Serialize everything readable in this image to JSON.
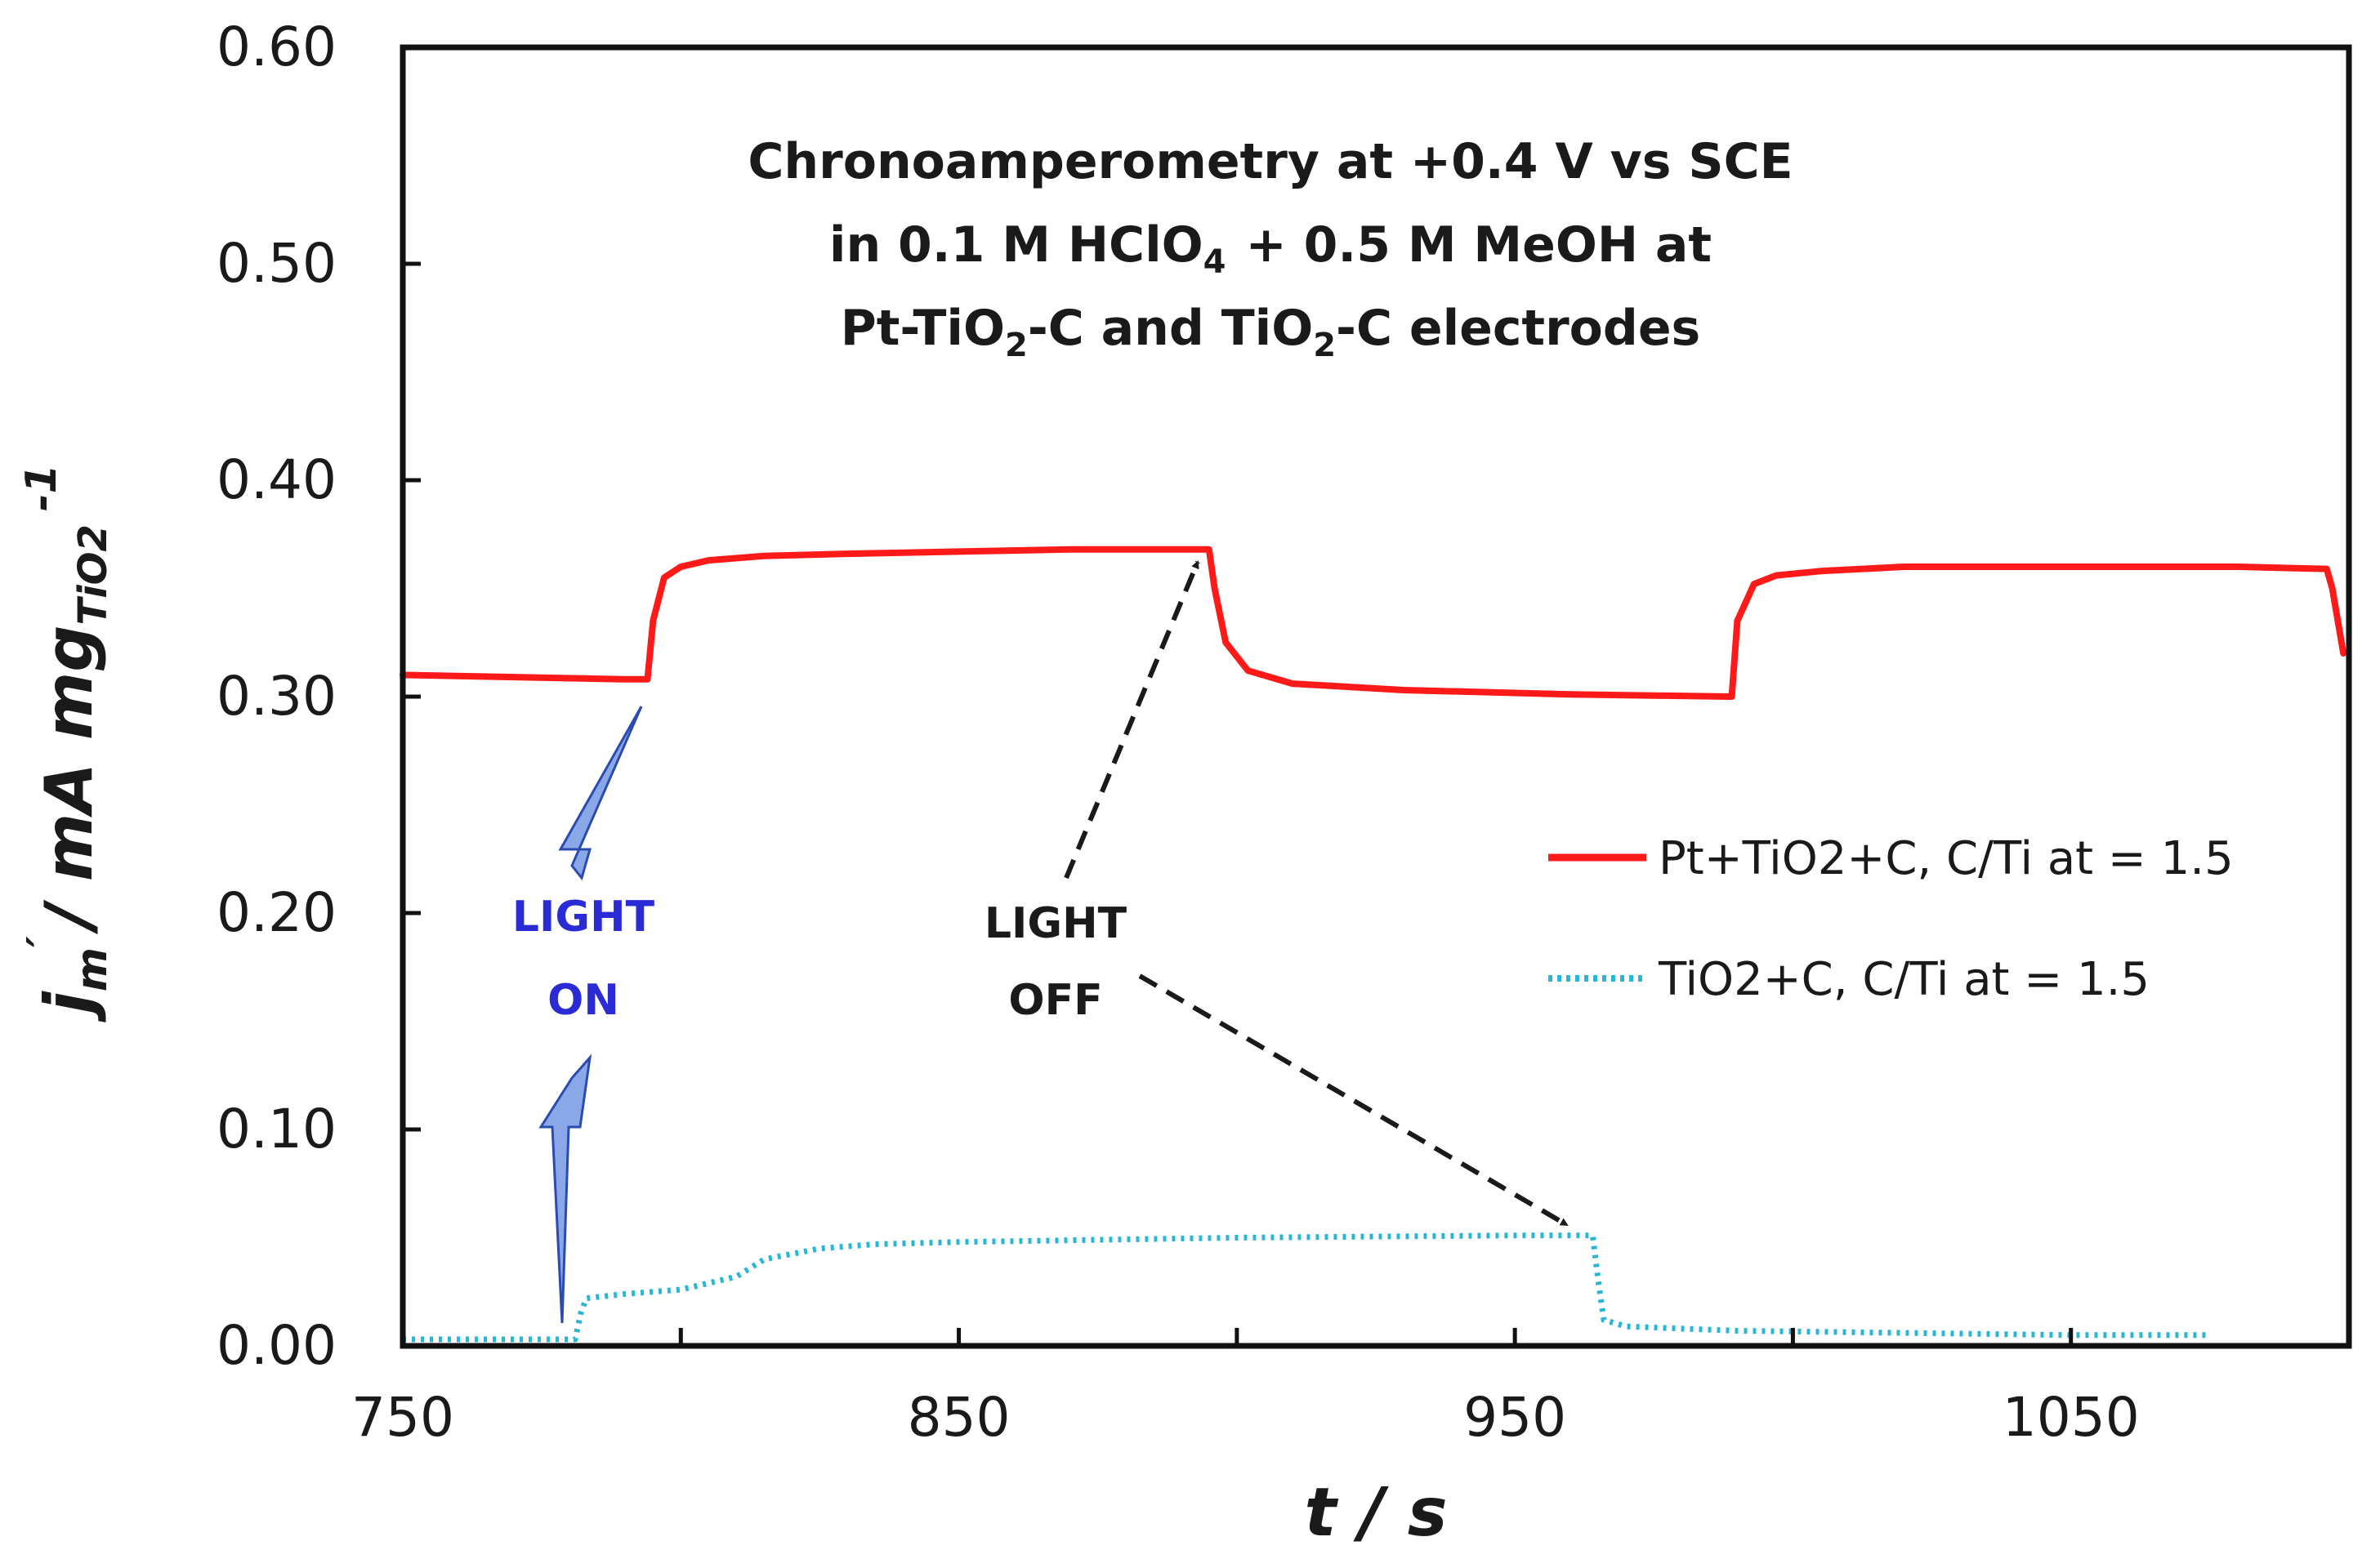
{
  "chart_data": {
    "type": "line",
    "title_lines": [
      "Chronoamperometry at +0.4 V vs SCE",
      "in 0.1 M HClO",
      "4",
      "+ 0.5 M MeOH at",
      "Pt-TiO",
      "2",
      "-C and TiO",
      "2",
      "-C electrodes"
    ],
    "xlabel": "t / s",
    "ylabel": {
      "j": "j",
      "j_sub": "m",
      "unit": "/ mA mg",
      "unit_sub": "TiO2",
      "unit_sup": "-1"
    },
    "xlim": [
      750,
      1100
    ],
    "ylim": [
      0,
      0.6
    ],
    "x_ticks": [
      750,
      850,
      950,
      1050
    ],
    "x_tick_labels": [
      "750",
      "850",
      "950",
      "1050"
    ],
    "x_minor_ticks": [
      800,
      900,
      1000
    ],
    "y_ticks": [
      0,
      0.1,
      0.2,
      0.3,
      0.4,
      0.5,
      0.6
    ],
    "y_tick_labels": [
      "0.00",
      "0.10",
      "0.20",
      "0.30",
      "0.40",
      "0.50",
      "0.60"
    ],
    "legend_position": "right",
    "series": [
      {
        "name": "Pt+TiO2+C, C/Ti at = 1.5",
        "color": "#ff1a1a",
        "style": "solid",
        "points": [
          [
            750,
            0.31
          ],
          [
            770,
            0.309
          ],
          [
            790,
            0.308
          ],
          [
            794,
            0.308
          ],
          [
            795,
            0.335
          ],
          [
            797,
            0.355
          ],
          [
            800,
            0.36
          ],
          [
            805,
            0.363
          ],
          [
            815,
            0.365
          ],
          [
            830,
            0.366
          ],
          [
            850,
            0.367
          ],
          [
            870,
            0.368
          ],
          [
            895,
            0.368
          ],
          [
            896,
            0.35
          ],
          [
            898,
            0.325
          ],
          [
            902,
            0.312
          ],
          [
            910,
            0.306
          ],
          [
            930,
            0.303
          ],
          [
            960,
            0.301
          ],
          [
            989,
            0.3
          ],
          [
            990,
            0.335
          ],
          [
            993,
            0.352
          ],
          [
            997,
            0.356
          ],
          [
            1005,
            0.358
          ],
          [
            1020,
            0.36
          ],
          [
            1050,
            0.36
          ],
          [
            1080,
            0.36
          ],
          [
            1096,
            0.359
          ],
          [
            1097,
            0.35
          ],
          [
            1099,
            0.32
          ]
        ]
      },
      {
        "name": "TiO2+C, C/Ti at = 1.5",
        "color": "#29b6d6",
        "style": "dotted",
        "points": [
          [
            750,
            0.003
          ],
          [
            770,
            0.003
          ],
          [
            781,
            0.003
          ],
          [
            782,
            0.015
          ],
          [
            783,
            0.022
          ],
          [
            790,
            0.024
          ],
          [
            800,
            0.026
          ],
          [
            810,
            0.032
          ],
          [
            815,
            0.04
          ],
          [
            825,
            0.045
          ],
          [
            835,
            0.047
          ],
          [
            850,
            0.048
          ],
          [
            900,
            0.05
          ],
          [
            950,
            0.051
          ],
          [
            964,
            0.051
          ],
          [
            965,
            0.03
          ],
          [
            966,
            0.012
          ],
          [
            970,
            0.009
          ],
          [
            990,
            0.007
          ],
          [
            1020,
            0.006
          ],
          [
            1050,
            0.005
          ],
          [
            1075,
            0.005
          ]
        ]
      }
    ],
    "annotations": {
      "light_on": [
        "LIGHT",
        "ON"
      ],
      "light_off": [
        "LIGHT",
        "OFF"
      ]
    }
  }
}
